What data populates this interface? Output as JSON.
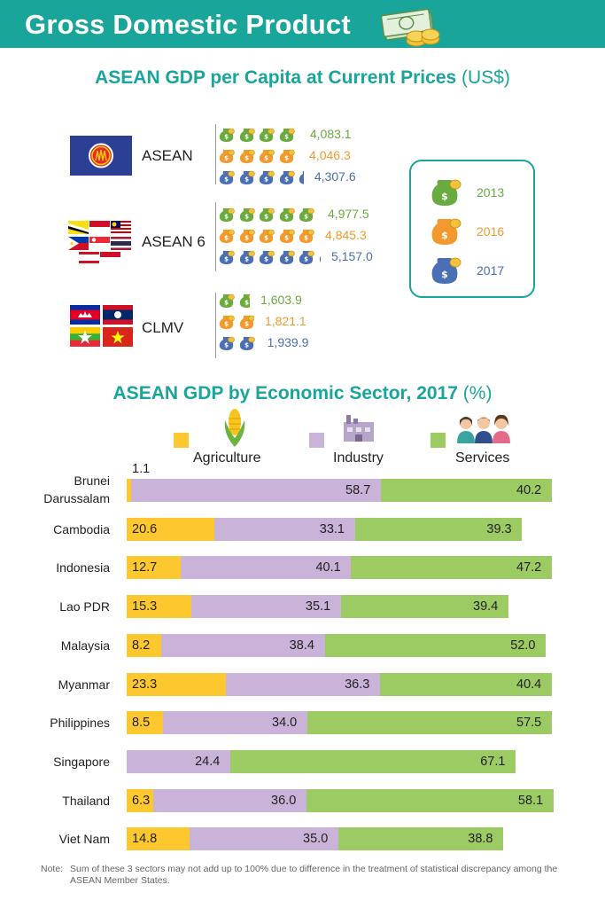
{
  "header": {
    "title": "Gross Domestic Product"
  },
  "section1": {
    "title": "ASEAN GDP per Capita at Current Prices",
    "unit": "(US$)"
  },
  "section2": {
    "title": "ASEAN GDP by Economic Sector, 2017",
    "unit": "(%)"
  },
  "colors": {
    "teal": "#1aa59b",
    "y2013": "#6aab3f",
    "y2016": "#f29a2e",
    "y2017": "#4a6fb5",
    "agriculture": "#fdc82f",
    "industry": "#c9b3d8",
    "services": "#9ccb63"
  },
  "chart_data": [
    {
      "type": "bar",
      "title": "ASEAN GDP per Capita at Current Prices (US$)",
      "categories": [
        "ASEAN",
        "ASEAN 6",
        "CLMV"
      ],
      "series": [
        {
          "name": "2013",
          "values": [
            4083.1,
            4977.5,
            1603.9
          ]
        },
        {
          "name": "2016",
          "values": [
            4046.3,
            4845.3,
            1821.1
          ]
        },
        {
          "name": "2017",
          "values": [
            4307.6,
            5157.0,
            1939.9
          ]
        }
      ],
      "value_labels": [
        [
          "4,083.1",
          "4,046.3",
          "4,307.6"
        ],
        [
          "4,977.5",
          "4,845.3",
          "5,157.0"
        ],
        [
          "1,603.9",
          "1,821.1",
          "1,939.9"
        ]
      ],
      "legend_position": "right"
    },
    {
      "type": "bar",
      "stacked": true,
      "orientation": "horizontal",
      "title": "ASEAN GDP by Economic Sector, 2017 (%)",
      "categories": [
        "Brunei Darussalam",
        "Cambodia",
        "Indonesia",
        "Lao PDR",
        "Malaysia",
        "Myanmar",
        "Philippines",
        "Singapore",
        "Thailand",
        "Viet Nam"
      ],
      "series": [
        {
          "name": "Agriculture",
          "values": [
            1.1,
            20.6,
            12.7,
            15.3,
            8.2,
            23.3,
            8.5,
            null,
            6.3,
            14.8
          ]
        },
        {
          "name": "Industry",
          "values": [
            58.7,
            33.1,
            40.1,
            35.1,
            38.4,
            36.3,
            34.0,
            24.4,
            36.0,
            35.0
          ]
        },
        {
          "name": "Services",
          "values": [
            40.2,
            39.3,
            47.2,
            39.4,
            52.0,
            40.4,
            57.5,
            67.1,
            58.1,
            38.8
          ]
        }
      ],
      "value_labels": [
        [
          "1.1",
          "58.7",
          "40.2"
        ],
        [
          "20.6",
          "33.1",
          "39.3"
        ],
        [
          "12.7",
          "40.1",
          "47.2"
        ],
        [
          "15.3",
          "35.1",
          "39.4"
        ],
        [
          "8.2",
          "38.4",
          "52.0"
        ],
        [
          "23.3",
          "36.3",
          "40.4"
        ],
        [
          "8.5",
          "34.0",
          "57.5"
        ],
        [
          "",
          "24.4",
          "67.1"
        ],
        [
          "6.3",
          "36.0",
          "58.1"
        ],
        [
          "14.8",
          "35.0",
          "38.8"
        ]
      ],
      "legend_position": "top"
    }
  ],
  "note": {
    "label": "Note:",
    "text": "Sum of these 3 sectors may not add up to 100% due to difference in the treatment of statistical discrepancy among the ASEAN Member States."
  }
}
